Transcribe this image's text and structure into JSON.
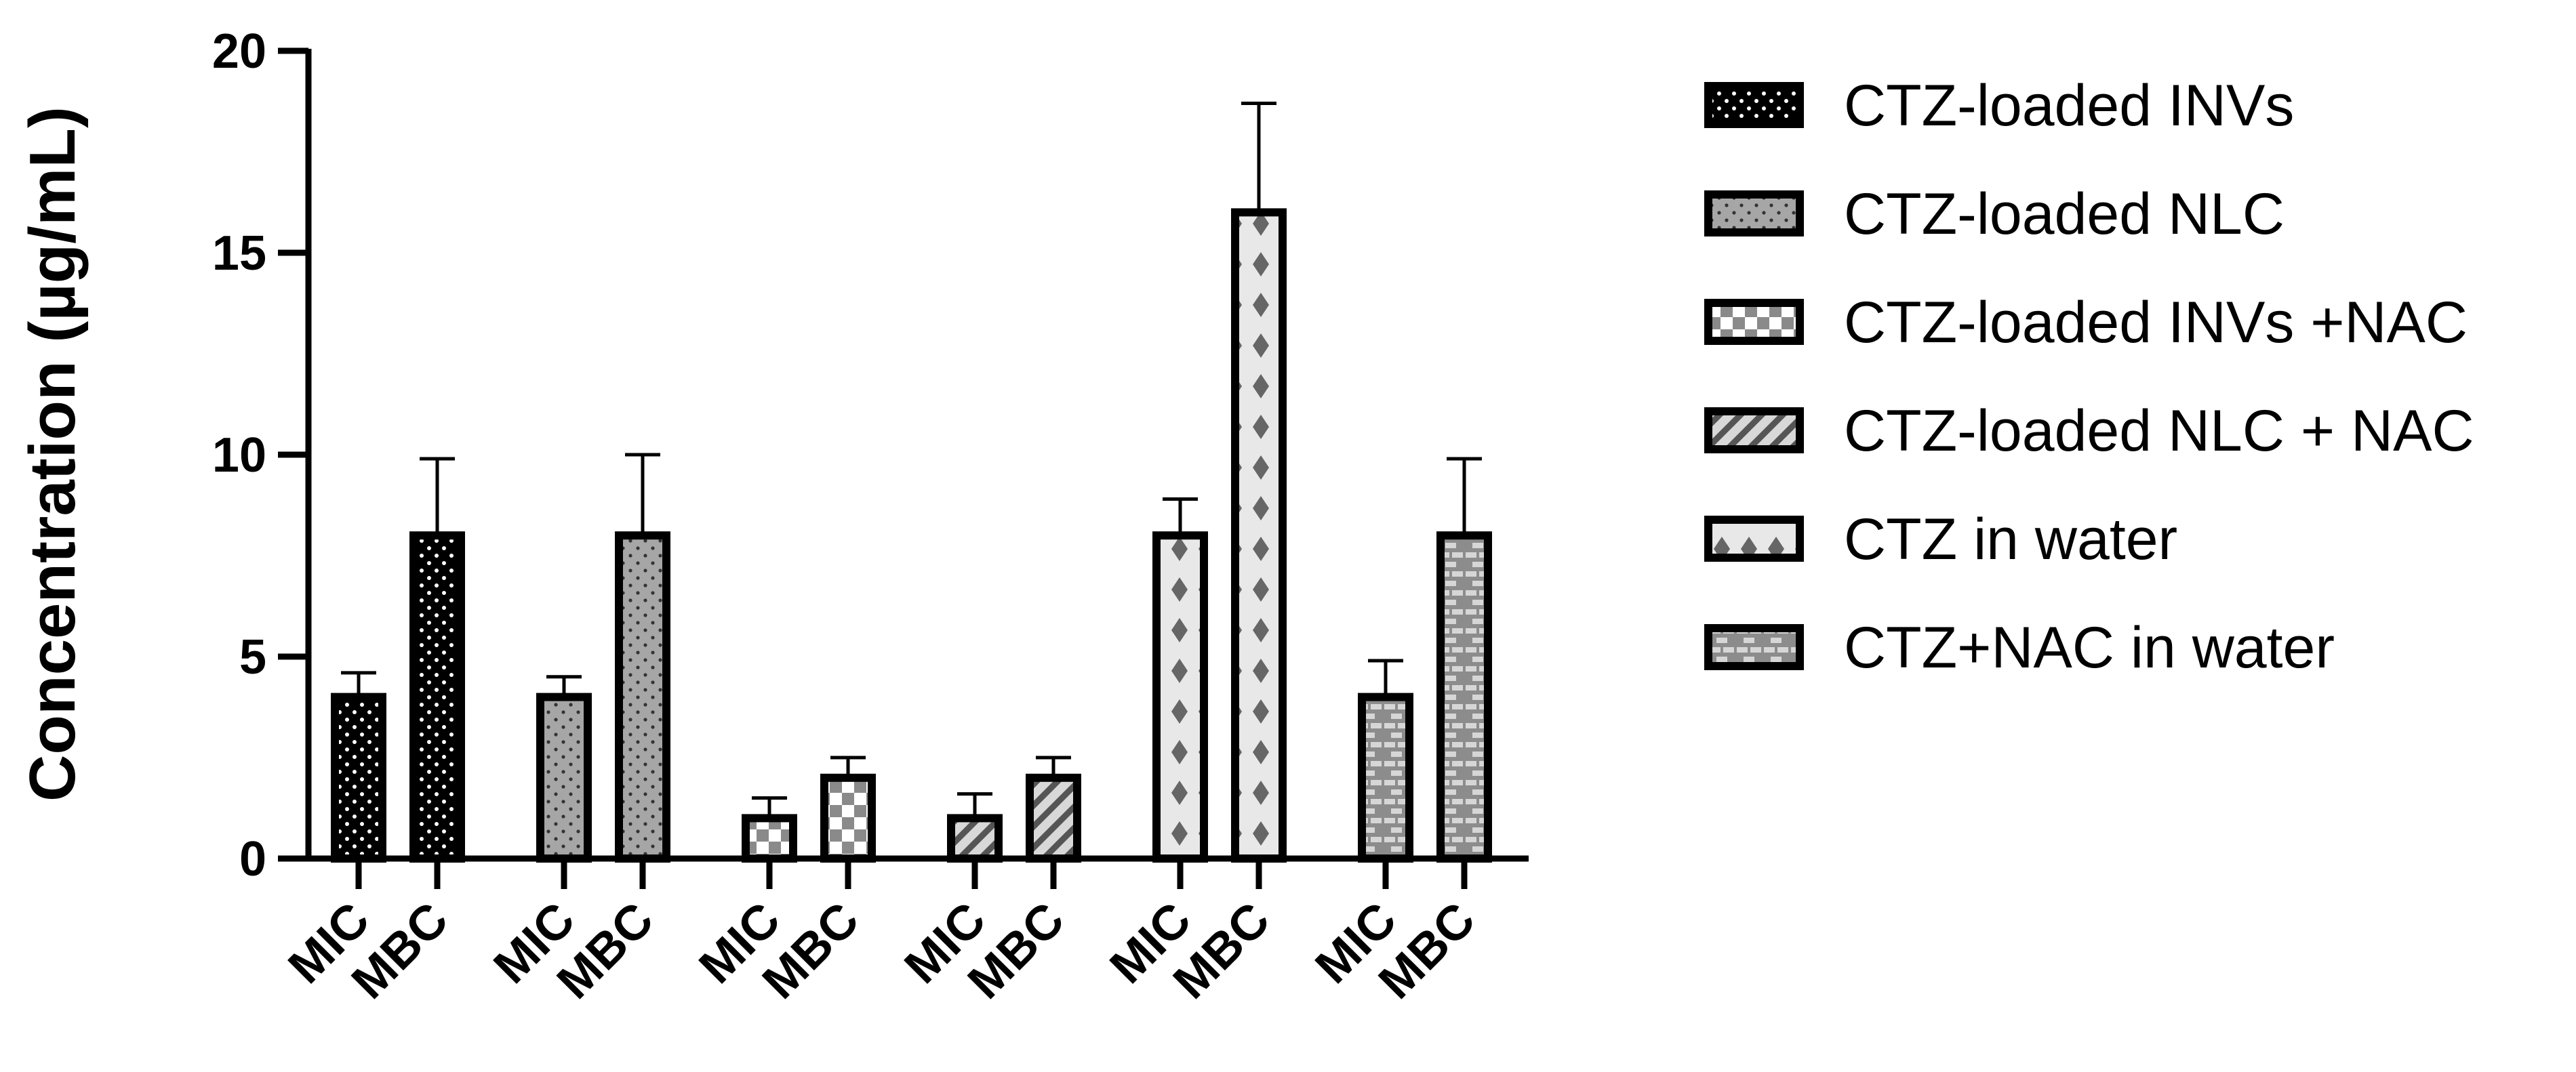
{
  "chart_data": {
    "type": "bar",
    "title": "",
    "xlabel": "",
    "ylabel": "Concentration (µg/mL)",
    "ylim": [
      0,
      20
    ],
    "yticks": [
      0,
      5,
      10,
      15,
      20
    ],
    "grid": false,
    "legend_position": "right",
    "categories": [
      "MIC",
      "MBC"
    ],
    "series": [
      {
        "name": "CTZ-loaded INVs",
        "values": [
          4,
          8
        ],
        "errors": [
          0.6,
          1.9
        ],
        "fill": "#000000",
        "pattern": "dots-white"
      },
      {
        "name": "CTZ-loaded NLC",
        "values": [
          4,
          8
        ],
        "errors": [
          0.5,
          2.0
        ],
        "fill": "#a6a6a6",
        "pattern": "dots-dark"
      },
      {
        "name": "CTZ-loaded INVs +NAC",
        "values": [
          1,
          2
        ],
        "errors": [
          0.5,
          0.5
        ],
        "fill": "#ffffff",
        "pattern": "checker"
      },
      {
        "name": "CTZ-loaded NLC + NAC",
        "values": [
          1,
          2
        ],
        "errors": [
          0.6,
          0.5
        ],
        "fill": "#d0d0d0",
        "pattern": "diagonal"
      },
      {
        "name": "CTZ in water",
        "values": [
          8,
          16
        ],
        "errors": [
          0.9,
          2.7
        ],
        "fill": "#e6e6e6",
        "pattern": "diamonds"
      },
      {
        "name": "CTZ+NAC in water",
        "values": [
          4,
          8
        ],
        "errors": [
          0.9,
          1.9
        ],
        "fill": "#8c8c8c",
        "pattern": "bricks"
      }
    ]
  }
}
